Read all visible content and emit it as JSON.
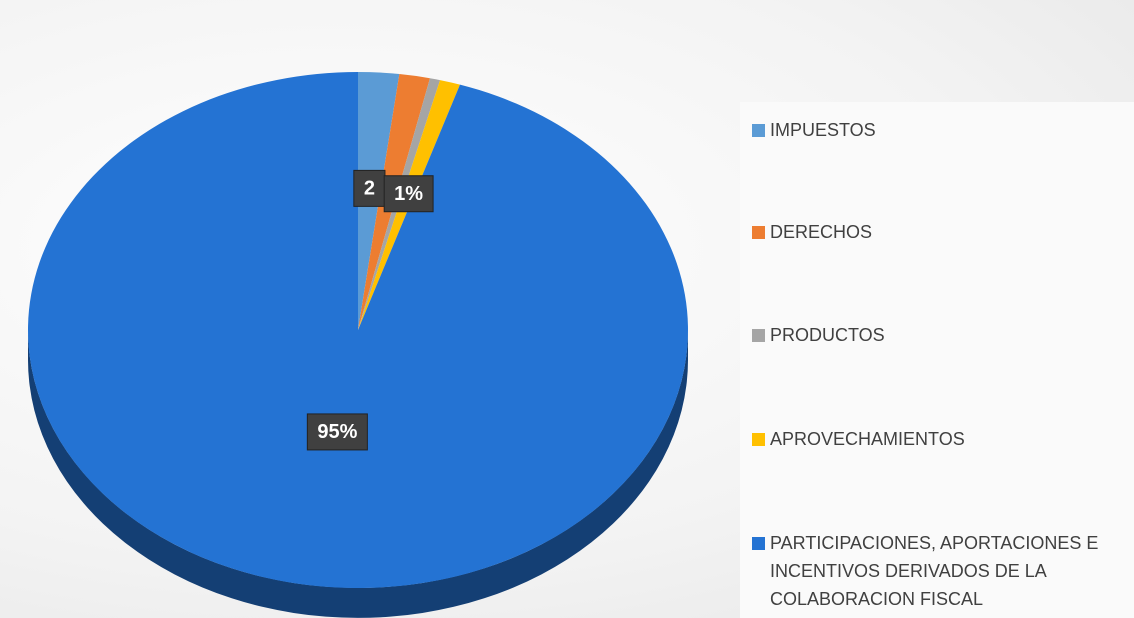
{
  "chart_data": {
    "type": "pie",
    "categories": [
      "IMPUESTOS",
      "DERECHOS",
      "PRODUCTOS",
      "APROVECHAMIENTOS",
      "PARTICIPACIONES, APORTACIONES E INCENTIVOS DERIVADOS DE LA COLABORACION FISCAL"
    ],
    "values": [
      2,
      1.5,
      0.5,
      1,
      95
    ],
    "value_labels": [
      "2",
      null,
      null,
      "1%",
      "95%"
    ],
    "colors": [
      "#5b9bd5",
      "#ed7d31",
      "#a5a5a5",
      "#ffc000",
      "#2473d3"
    ],
    "legend": "right"
  }
}
